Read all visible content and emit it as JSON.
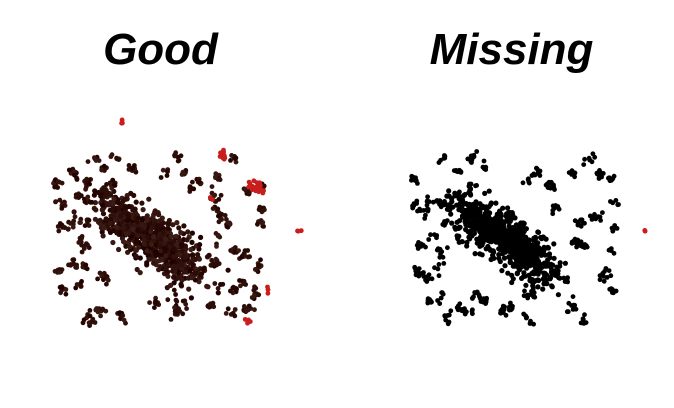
{
  "chart_data": [
    {
      "type": "scatter",
      "title": "Good",
      "point_color": "#2e0e08",
      "highlight_color": "#c81e1e"
    },
    {
      "type": "scatter",
      "title": "Missing",
      "point_color": "#000000",
      "highlight_color": "#c81e1e"
    }
  ]
}
